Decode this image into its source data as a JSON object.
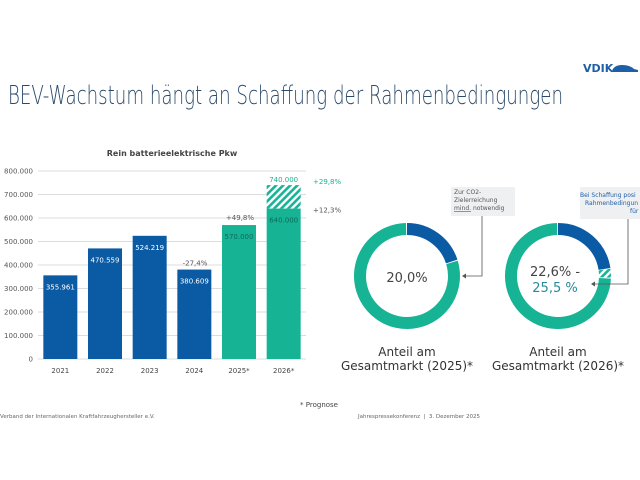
{
  "header": {
    "logo_text": "VDIK",
    "title": "BEV-Wachstum hängt an Schaffung der Rahmenbedingungen"
  },
  "colors": {
    "blue": "#0a5ba4",
    "teal": "#17b395",
    "title": "#2b4a6a",
    "text": "#444444"
  },
  "chart_data": [
    {
      "type": "bar",
      "title": "Rein batterieelektrische Pkw",
      "categories": [
        "2021",
        "2022",
        "2023",
        "2024",
        "2025*",
        "2026*"
      ],
      "values": [
        355961,
        470559,
        524219,
        380609,
        570000,
        640000
      ],
      "value_labels": [
        "355.961",
        "470.559",
        "524.219",
        "380.609",
        "570.000",
        "640.000"
      ],
      "forecast_upper": {
        "category": "2026*",
        "value": 740000,
        "label": "740.000"
      },
      "ylim": [
        0,
        800000
      ],
      "yticks": [
        "0",
        "100.000",
        "200.000",
        "300.000",
        "400.000",
        "500.000",
        "600.000",
        "700.000",
        "800.000"
      ],
      "grid": true,
      "annotations": {
        "2024": "-27,4%",
        "2025": "+49,8%",
        "2026_low": "+12,3%",
        "2026_high": "+29,8%"
      },
      "footnote": "* Prognose"
    },
    {
      "type": "pie",
      "donut": true,
      "center_label": "20,0%",
      "share": 20.0,
      "caption_line1": "Anteil am",
      "caption_line2": "Gesamtmarkt (2025)*",
      "callout": [
        "Zur CO2-",
        "Zielerreichung",
        "mind.",
        " notwendig"
      ]
    },
    {
      "type": "pie",
      "donut": true,
      "center_label_line1": "22,6% -",
      "center_label_line2": "25,5 %",
      "share_low": 22.6,
      "share_high": 25.5,
      "caption_line1": "Anteil am",
      "caption_line2": "Gesamtmarkt (2026)*",
      "callout": [
        "Bei Schaffung posi",
        "Rahmenbedingun",
        "für"
      ]
    }
  ],
  "footer": {
    "left": "Verband der Internationalen Kraftfahrzeughersteller e.V.",
    "right": "Jahrespressekonferenz  |  3. Dezember 2025"
  }
}
